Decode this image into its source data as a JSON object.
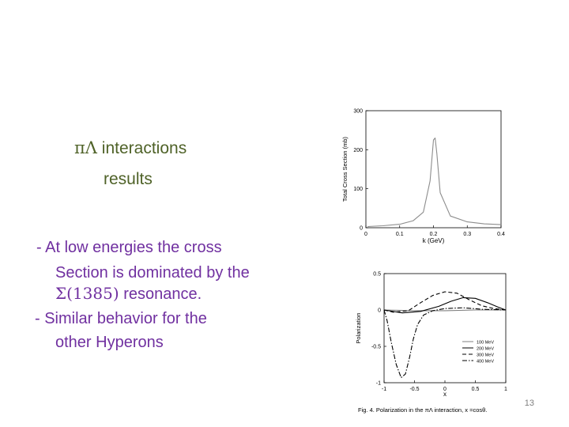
{
  "slide": {
    "title_line1_symbol": "πΛ",
    "title_line1_rest": " interactions",
    "title_line2": "results",
    "bullets": [
      {
        "marker": "- ",
        "text": "At low energies the cross"
      },
      {
        "marker": "",
        "text": "Section is dominated by the"
      },
      {
        "marker": "",
        "symbol": "Σ(1385)",
        "text": " resonance."
      },
      {
        "marker": "-  ",
        "text": "Similar behavior for the"
      },
      {
        "marker": "",
        "text": "other Hyperons"
      }
    ],
    "page_number": "13"
  },
  "chart_data": [
    {
      "type": "line",
      "title": "",
      "xlabel": "k (GeV)",
      "ylabel": "Total Cross Section (mb)",
      "xlim": [
        0,
        0.4
      ],
      "ylim": [
        0,
        300
      ],
      "x_ticks": [
        "0",
        "0.1",
        "0.2",
        "0.3",
        "0.4"
      ],
      "y_ticks": [
        "0",
        "100",
        "200",
        "300"
      ],
      "series": [
        {
          "x": [
            0.005,
            0.05,
            0.1,
            0.14,
            0.17,
            0.19,
            0.2,
            0.205,
            0.21,
            0.22,
            0.25,
            0.3,
            0.35,
            0.4
          ],
          "y": [
            3,
            5,
            9,
            18,
            40,
            120,
            225,
            230,
            190,
            90,
            30,
            15,
            10,
            8
          ]
        }
      ]
    },
    {
      "type": "line",
      "title": "",
      "caption": "Fig. 4. Polarization in the πΛ interaction, x =cosθ.",
      "xlabel": "x",
      "ylabel": "Polarization",
      "xlim": [
        -1,
        1
      ],
      "ylim": [
        -1,
        0.5
      ],
      "x_ticks": [
        "-1",
        "-0.5",
        "0",
        "0.5",
        "1"
      ],
      "y_ticks": [
        "-1",
        "-0.5",
        "0",
        "0.5"
      ],
      "legend_position": "bottom-right",
      "series": [
        {
          "name": "100 MeV",
          "color": "#808080",
          "dash": "solid",
          "x": [
            -1,
            -0.5,
            0,
            0.5,
            1
          ],
          "y": [
            0,
            -0.01,
            -0.01,
            0,
            0
          ]
        },
        {
          "name": "200 MeV",
          "color": "#000000",
          "dash": "solid",
          "x": [
            -1,
            -0.7,
            -0.4,
            -0.1,
            0.1,
            0.3,
            0.5,
            0.7,
            0.9,
            1
          ],
          "y": [
            0,
            -0.04,
            -0.02,
            0.05,
            0.12,
            0.17,
            0.16,
            0.1,
            0.03,
            0
          ]
        },
        {
          "name": "300 MeV",
          "color": "#000000",
          "dash": "dashed",
          "x": [
            -1,
            -0.85,
            -0.6,
            -0.4,
            -0.2,
            0,
            0.2,
            0.4,
            0.6,
            0.8,
            1
          ],
          "y": [
            0,
            -0.03,
            -0.01,
            0.1,
            0.2,
            0.25,
            0.23,
            0.14,
            0.06,
            0.02,
            0
          ]
        },
        {
          "name": "400 MeV",
          "color": "#000000",
          "dash": "dash-dot",
          "x": [
            -1,
            -0.95,
            -0.88,
            -0.8,
            -0.72,
            -0.65,
            -0.58,
            -0.52,
            -0.45,
            -0.35,
            -0.2,
            0,
            0.3,
            0.6,
            1
          ],
          "y": [
            0,
            -0.15,
            -0.45,
            -0.75,
            -0.93,
            -0.88,
            -0.65,
            -0.4,
            -0.2,
            -0.07,
            -0.01,
            0.02,
            0.03,
            0.01,
            0
          ]
        }
      ]
    }
  ]
}
